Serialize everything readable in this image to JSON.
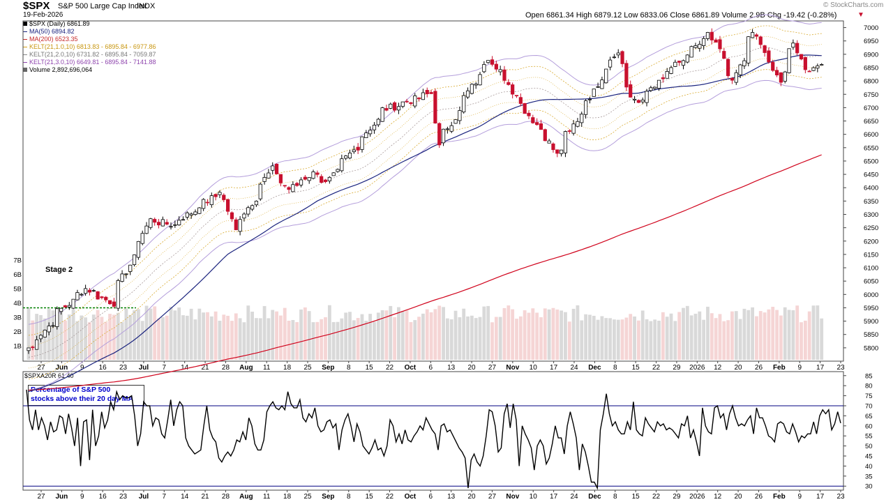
{
  "header": {
    "symbol": "$SPX",
    "name": "S&P 500 Large Cap Index",
    "exchange": "INDX",
    "date": "19-Feb-2026",
    "watermark": "© StockCharts.com",
    "ohlc_line": "Open 6861.34  High 6879.12  Low 6833.06  Close 6861.89  Volume 2.9B  Chg -19.42 (-0.28%)",
    "chg_arrow": "▼"
  },
  "legend": [
    {
      "text": "$SPX (Daily) 6861.89",
      "color": "#000000"
    },
    {
      "text": "MA(50) 6894.82",
      "color": "#1a237e"
    },
    {
      "text": "MA(200) 6523.35",
      "color": "#c62828"
    },
    {
      "text": "KELT(21,1.0,10) 6813.83 - 6895.84 - 6977.86",
      "color": "#d4a017"
    },
    {
      "text": "KELT(21,2.0,10) 6731.82 - 6895.84 - 7059.87",
      "color": "#888888"
    },
    {
      "text": "KELT(21,3.0,10) 6649.81 - 6895.84 - 7141.88",
      "color": "#8e44ad"
    },
    {
      "text": "Volume 2,892,696,064",
      "color": "#000000"
    }
  ],
  "annotations": {
    "stage": "Stage 2"
  },
  "lower_panel": {
    "title": "$SPXA20R 61.40",
    "note_line1": "Percentage of S&P 500",
    "note_line2": "stocks above their 20 day MA"
  },
  "colors": {
    "up": "#000000",
    "down": "#c8102e",
    "ma50": "#1a237e",
    "ma200": "#d0021b",
    "kelt1": "#d4a017",
    "kelt2": "#9e8e8e",
    "kelt3": "#b39ddb",
    "vol_up": "#d9d9d9",
    "vol_down": "#f5d5d5",
    "note": "#0000cc",
    "line": "#000000"
  },
  "chart_data": [
    {
      "type": "candlestick",
      "title": "$SPX S&P 500 Large Cap Index",
      "y_ticks": [
        5800,
        5850,
        5900,
        5950,
        6000,
        6050,
        6100,
        6150,
        6200,
        6250,
        6300,
        6350,
        6400,
        6450,
        6500,
        6550,
        6600,
        6650,
        6700,
        6750,
        6800,
        6850,
        6900,
        6950,
        7000
      ],
      "ylim": [
        5750,
        7025
      ],
      "x_ticks": [
        "27",
        "Jun",
        "9",
        "16",
        "23",
        "Jul",
        "7",
        "14",
        "21",
        "28",
        "Aug",
        "11",
        "18",
        "25",
        "Sep",
        "8",
        "15",
        "22",
        "Oct",
        "6",
        "13",
        "20",
        "27",
        "Nov",
        "10",
        "17",
        "24",
        "Dec",
        "8",
        "15",
        "22",
        "29",
        "2026",
        "12",
        "20",
        "26",
        "Feb",
        "9",
        "17",
        "23"
      ],
      "ohlc_ref": {
        "open": 6861.34,
        "high": 6879.12,
        "low": 6833.06,
        "close": 6861.89
      },
      "keypoints": [
        {
          "date": "May 23 2025",
          "close": 5800
        },
        {
          "date": "Jun 2 2025",
          "close": 5936
        },
        {
          "date": "Jun 11 2025",
          "close": 6022
        },
        {
          "date": "Jun 20 2025",
          "close": 5968
        },
        {
          "date": "Jul 3 2025",
          "close": 6279
        },
        {
          "date": "Jul 11 2025",
          "close": 6260
        },
        {
          "date": "Jul 28 2025",
          "close": 6390
        },
        {
          "date": "Aug 1 2025",
          "close": 6238
        },
        {
          "date": "Aug 14 2025",
          "close": 6469
        },
        {
          "date": "Aug 20 2025",
          "close": 6395
        },
        {
          "date": "Aug 29 2025",
          "close": 6460
        },
        {
          "date": "Sep 2 2025",
          "close": 6415
        },
        {
          "date": "Sep 22 2025",
          "close": 6693
        },
        {
          "date": "Oct 8 2025",
          "close": 6753
        },
        {
          "date": "Oct 10 2025",
          "close": 6552
        },
        {
          "date": "Oct 28 2025",
          "close": 6890
        },
        {
          "date": "Nov 7 2025",
          "close": 6728
        },
        {
          "date": "Nov 20 2025",
          "close": 6538
        },
        {
          "date": "Dec 11 2025",
          "close": 6901
        },
        {
          "date": "Dec 17 2025",
          "close": 6721
        },
        {
          "date": "Jan 12 2026",
          "close": 6977
        },
        {
          "date": "Jan 20 2026",
          "close": 6797
        },
        {
          "date": "Jan 27 2026",
          "close": 6978
        },
        {
          "date": "Feb 5 2026",
          "close": 6798
        },
        {
          "date": "Feb 10 2026",
          "close": 6942
        },
        {
          "date": "Feb 13 2026",
          "close": 6836
        },
        {
          "date": "Feb 19 2026",
          "close": 6861.89
        }
      ],
      "ma50_end": 6894.82,
      "ma200_end": 6523.35,
      "kelt_end": {
        "k1": [
          6813.83,
          6895.84,
          6977.86
        ],
        "k2": [
          6731.82,
          6895.84,
          7059.87
        ],
        "k3": [
          6649.81,
          6895.84,
          7141.88
        ]
      },
      "volume_axis": [
        "1B",
        "2B",
        "3B",
        "4B",
        "5B",
        "6B",
        "7B"
      ],
      "volume_last": 2892696064
    },
    {
      "type": "line",
      "title": "$SPXA20R",
      "ylabel": "",
      "y_ticks": [
        30,
        35,
        40,
        45,
        50,
        55,
        60,
        65,
        70,
        75,
        80,
        85
      ],
      "ylim": [
        28,
        87
      ],
      "ref_lines": [
        70,
        30
      ],
      "values": [
        78,
        63,
        58,
        68,
        58,
        64,
        60,
        53,
        62,
        57,
        58,
        65,
        64,
        56,
        66,
        59,
        50,
        64,
        40,
        62,
        63,
        43,
        68,
        50,
        55,
        67,
        59,
        63,
        72,
        68,
        77,
        73,
        75,
        74,
        74,
        75,
        65,
        50,
        56,
        72,
        70,
        70,
        60,
        64,
        63,
        56,
        54,
        63,
        73,
        60,
        68,
        72,
        70,
        54,
        50,
        48,
        46,
        47,
        48,
        60,
        70,
        58,
        54,
        52,
        44,
        42,
        45,
        47,
        45,
        48,
        53,
        52,
        57,
        53,
        64,
        60,
        51,
        48,
        48,
        53,
        67,
        70,
        72,
        69,
        68,
        70,
        68,
        77,
        71,
        69,
        69,
        73,
        64,
        62,
        66,
        64,
        69,
        60,
        57,
        58,
        62,
        63,
        59,
        61,
        48,
        58,
        63,
        66,
        60,
        52,
        61,
        57,
        50,
        48,
        46,
        49,
        53,
        48,
        49,
        45,
        50,
        63,
        60,
        52,
        56,
        51,
        58,
        53,
        52,
        55,
        57,
        60,
        58,
        64,
        61,
        58,
        56,
        48,
        60,
        61,
        57,
        58,
        55,
        52,
        49,
        47,
        44,
        29,
        43,
        46,
        42,
        40,
        45,
        55,
        68,
        67,
        60,
        47,
        49,
        66,
        71,
        59,
        71,
        63,
        40,
        60,
        56,
        53,
        49,
        38,
        50,
        53,
        50,
        41,
        44,
        51,
        60,
        54,
        54,
        46,
        60,
        67,
        61,
        54,
        38,
        51,
        47,
        40,
        32,
        32,
        29,
        58,
        66,
        76,
        66,
        60,
        62,
        58,
        56,
        56,
        62,
        58,
        72,
        58,
        56,
        55,
        64,
        61,
        59,
        57,
        62,
        60,
        61,
        58,
        59,
        58,
        56,
        54,
        61,
        60,
        65,
        54,
        58,
        52,
        45,
        69,
        60,
        57,
        56,
        69,
        70,
        64,
        66,
        58,
        66,
        70,
        64,
        60,
        61,
        60,
        63,
        65,
        56,
        69,
        64,
        64,
        60,
        55,
        54,
        52,
        61,
        62,
        61,
        57,
        56,
        61,
        57,
        52,
        55,
        54,
        56,
        56,
        62,
        56,
        65,
        68,
        66,
        68,
        58,
        61,
        67,
        61.4
      ]
    }
  ]
}
